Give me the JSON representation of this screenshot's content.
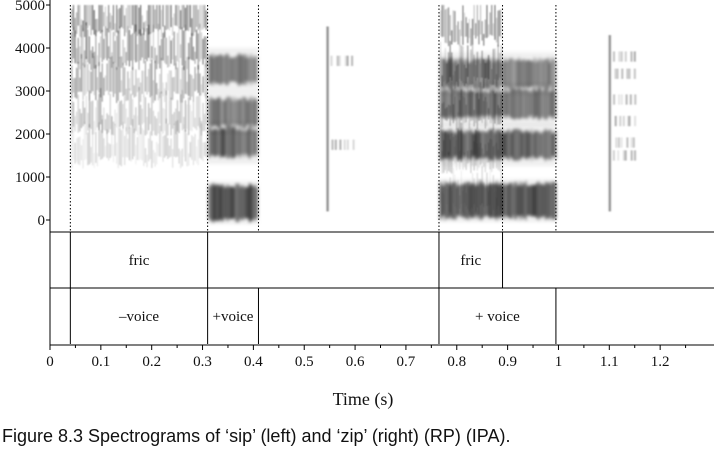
{
  "figure": {
    "caption": "Figure 8.3  Spectrograms of ‘sip’ (left) and ‘zip’ (right) (RP) (IPA)."
  },
  "chart_data": {
    "type": "spectrogram",
    "xlabel": "Time (s)",
    "xlim": [
      0,
      1.3
    ],
    "x_ticks": [
      0,
      0.1,
      0.2,
      0.3,
      0.4,
      0.5,
      0.6,
      0.7,
      0.8,
      0.9,
      1,
      1.1,
      1.2
    ],
    "x_tick_labels": [
      "0",
      "0.1",
      "0.2",
      "0.3",
      "0.4",
      "0.5",
      "0.6",
      "0.7",
      "0.8",
      "0.9",
      "1",
      "1.1",
      "1.2"
    ],
    "ylim": [
      0,
      5000
    ],
    "y_ticks": [
      0,
      1000,
      2000,
      3000,
      4000,
      5000
    ],
    "y_tick_labels": [
      "0",
      "1000",
      "2000",
      "3000",
      "4000",
      "5000"
    ],
    "boundaries": [
      0.04,
      0.31,
      0.41,
      0.765,
      0.89,
      0.995
    ],
    "fricative_noise": [
      {
        "t0": 0.04,
        "t1": 0.31,
        "f0": 1200,
        "f1": 5000
      },
      {
        "t0": 0.765,
        "t1": 0.89,
        "f0": 100,
        "f1": 5000
      }
    ],
    "vowel_formants": [
      {
        "t0": 0.31,
        "t1": 0.41,
        "bands": [
          400,
          1800,
          2500,
          3500
        ]
      },
      {
        "t0": 0.765,
        "t1": 0.995,
        "bands": [
          450,
          1750,
          2700,
          3400
        ]
      }
    ],
    "bursts": [
      {
        "t": 0.545,
        "f0": 200,
        "f1": 4500
      },
      {
        "t": 1.1,
        "f0": 200,
        "f1": 4300
      }
    ],
    "tiers": [
      {
        "name": "tier-1",
        "intervals": [
          {
            "start": 0,
            "end": 0.04,
            "label": ""
          },
          {
            "start": 0.04,
            "end": 0.31,
            "label": "fric"
          },
          {
            "start": 0.31,
            "end": 0.765,
            "label": ""
          },
          {
            "start": 0.765,
            "end": 0.89,
            "label": "fric"
          },
          {
            "start": 0.89,
            "end": 1.3,
            "label": ""
          }
        ]
      },
      {
        "name": "tier-2",
        "intervals": [
          {
            "start": 0,
            "end": 0.04,
            "label": ""
          },
          {
            "start": 0.04,
            "end": 0.31,
            "label": "–voice"
          },
          {
            "start": 0.31,
            "end": 0.41,
            "label": "+voice"
          },
          {
            "start": 0.41,
            "end": 0.765,
            "label": ""
          },
          {
            "start": 0.765,
            "end": 0.995,
            "label": "+ voice"
          },
          {
            "start": 0.995,
            "end": 1.3,
            "label": ""
          }
        ]
      }
    ]
  }
}
